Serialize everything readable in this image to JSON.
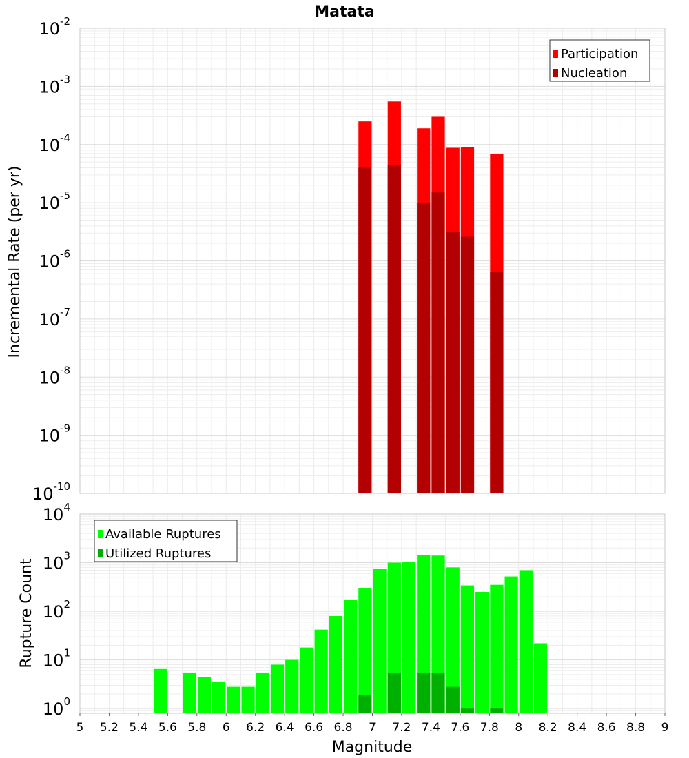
{
  "chart_data": [
    {
      "type": "bar",
      "title": "Matata",
      "ylabel": "Incremental Rate (per yr)",
      "xlabel": "",
      "yscale": "log",
      "ylim": [
        1e-10,
        0.01
      ],
      "xlim": [
        5,
        9
      ],
      "bar_width": 0.1,
      "legend_position": "top-right",
      "grid": true,
      "y_tick_exponents": [
        "-10",
        "-9",
        "-8",
        "-7",
        "-6",
        "-5",
        "-4",
        "-3",
        "-2"
      ],
      "y_tick_base": "10",
      "series": [
        {
          "name": "Participation",
          "color": "#ff0000",
          "x": [
            6.95,
            7.15,
            7.35,
            7.45,
            7.55,
            7.65,
            7.85
          ],
          "values": [
            0.00025,
            0.00055,
            0.00019,
            0.0003,
            8.8e-05,
            9e-05,
            6.8e-05
          ]
        },
        {
          "name": "Nucleation",
          "color": "#b30000",
          "x": [
            6.95,
            7.15,
            7.35,
            7.45,
            7.55,
            7.65,
            7.85
          ],
          "values": [
            4e-05,
            4.5e-05,
            1e-05,
            1.5e-05,
            3.1e-06,
            2.6e-06,
            6.5e-07
          ]
        }
      ]
    },
    {
      "type": "bar",
      "ylabel": "Rupture Count",
      "xlabel": "Magnitude",
      "yscale": "log",
      "ylim": [
        0.8,
        10000
      ],
      "xlim": [
        5,
        9
      ],
      "bar_width": 0.1,
      "legend_position": "top-left",
      "grid": true,
      "x_ticks": [
        "5",
        "5.2",
        "5.4",
        "5.6",
        "5.8",
        "6",
        "6.2",
        "6.4",
        "6.6",
        "6.8",
        "7",
        "7.2",
        "7.4",
        "7.6",
        "7.8",
        "8",
        "8.2",
        "8.4",
        "8.6",
        "8.8",
        "9"
      ],
      "y_tick_exponents": [
        "0",
        "1",
        "2",
        "3",
        "4"
      ],
      "y_tick_base": "10",
      "series": [
        {
          "name": "Available Ruptures",
          "color": "#00ff00",
          "x": [
            5.55,
            5.75,
            5.85,
            5.95,
            6.05,
            6.15,
            6.25,
            6.35,
            6.45,
            6.55,
            6.65,
            6.75,
            6.85,
            6.95,
            7.05,
            7.15,
            7.25,
            7.35,
            7.45,
            7.55,
            7.65,
            7.75,
            7.85,
            7.95,
            8.05,
            8.15
          ],
          "values": [
            6.5,
            5.5,
            4.5,
            3.6,
            2.8,
            2.8,
            5.5,
            8,
            10,
            18,
            42,
            80,
            170,
            300,
            740,
            1000,
            1050,
            1450,
            1400,
            800,
            340,
            250,
            350,
            520,
            700,
            22
          ]
        },
        {
          "name": "Utilized Ruptures",
          "color": "#00b000",
          "x": [
            6.95,
            7.15,
            7.35,
            7.45,
            7.55,
            7.65,
            7.85
          ],
          "values": [
            1.9,
            5.5,
            5.5,
            5.5,
            2.8,
            1,
            1
          ]
        }
      ]
    }
  ]
}
